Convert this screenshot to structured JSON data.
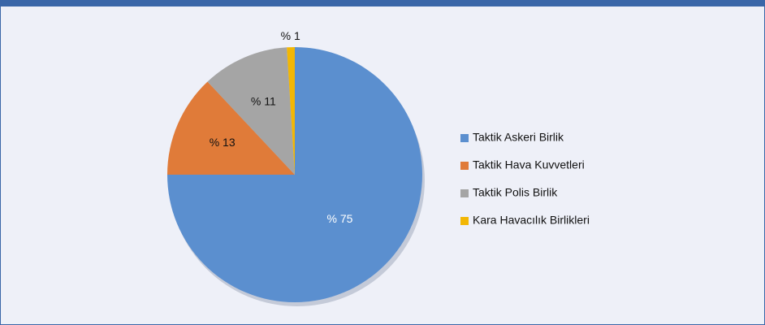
{
  "chart_data": {
    "type": "pie",
    "categories": [
      "Taktik Askeri Birlik",
      "Taktik Hava Kuvvetleri",
      "Taktik Polis Birlik",
      "Kara Havacılık Birlikleri"
    ],
    "values": [
      75,
      13,
      11,
      1
    ],
    "value_labels": [
      "% 75",
      "% 13",
      "% 11",
      "% 1"
    ],
    "colors": [
      "#5b8fcf",
      "#e07b39",
      "#a5a5a5",
      "#f2b705"
    ],
    "legend": "right"
  }
}
